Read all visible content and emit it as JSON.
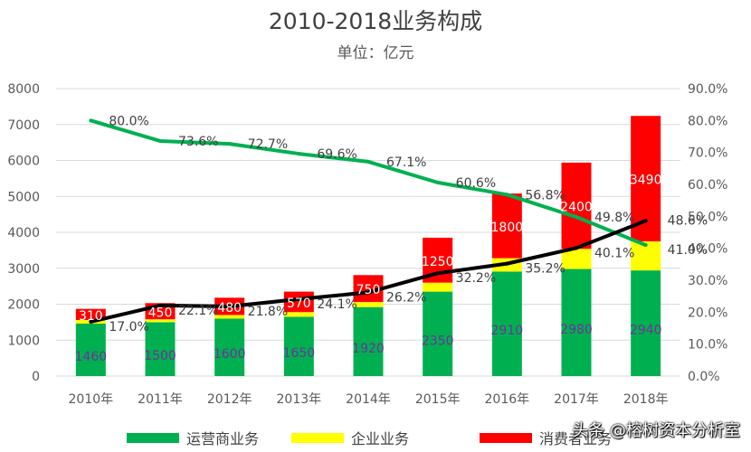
{
  "chart_data": {
    "type": "bar",
    "title": "2010-2018业务构成",
    "subtitle": "单位：亿元",
    "stacked": true,
    "categories": [
      "2010年",
      "2011年",
      "2012年",
      "2013年",
      "2014年",
      "2015年",
      "2016年",
      "2017年",
      "2018年"
    ],
    "series": [
      {
        "name": "运营商业务",
        "color": "#00b050",
        "values": [
          1460,
          1500,
          1600,
          1650,
          1920,
          2350,
          2910,
          2980,
          2940
        ],
        "labels": [
          "1460",
          "1500",
          "1600",
          "1650",
          "1920",
          "2350",
          "2910",
          "2980",
          "2940"
        ]
      },
      {
        "name": "企业业务",
        "color": "#ffff00",
        "values": [
          100,
          80,
          100,
          130,
          140,
          250,
          370,
          560,
          810
        ]
      },
      {
        "name": "消费者业务",
        "color": "#ff0000",
        "values": [
          310,
          450,
          480,
          570,
          750,
          1250,
          1800,
          2400,
          3490
        ],
        "labels": [
          "310",
          "450",
          "480",
          "570",
          "750",
          "1250",
          "1800",
          "2400",
          "3490"
        ]
      }
    ],
    "lines": [
      {
        "color": "#00b050",
        "axis": "right",
        "values": [
          80.0,
          73.6,
          72.7,
          69.6,
          67.1,
          60.6,
          56.8,
          49.8,
          41.0
        ],
        "labels": [
          "80.0%",
          "73.6%",
          "72.7%",
          "69.6%",
          "67.1%",
          "60.6%",
          "56.8%",
          "49.8%",
          "41.0%"
        ]
      },
      {
        "color": "#000000",
        "axis": "right",
        "values": [
          17.0,
          22.1,
          21.8,
          24.1,
          26.2,
          32.2,
          35.2,
          40.1,
          48.6
        ],
        "labels": [
          "17.0%",
          "22.1%",
          "21.8%",
          "24.1%",
          "26.2%",
          "32.2%",
          "35.2%",
          "40.1%",
          "48.6%"
        ]
      }
    ],
    "y_left": {
      "min": 0,
      "max": 8000,
      "ticks": [
        "0",
        "1000",
        "2000",
        "3000",
        "4000",
        "5000",
        "6000",
        "7000",
        "8000"
      ]
    },
    "y_right": {
      "min": 0,
      "max": 90,
      "ticks": [
        "0.0%",
        "10.0%",
        "20.0%",
        "30.0%",
        "40.0%",
        "50.0%",
        "60.0%",
        "70.0%",
        "80.0%",
        "90.0%"
      ]
    },
    "grid": true,
    "legend": {
      "position": "bottom",
      "items": [
        {
          "label": "运营商业务",
          "color": "#00b050"
        },
        {
          "label": "企业业务",
          "color": "#ffff00"
        },
        {
          "label": "消费者业务",
          "color": "#ff0000"
        }
      ]
    }
  },
  "watermark": "头条 @榕树资本分析室"
}
